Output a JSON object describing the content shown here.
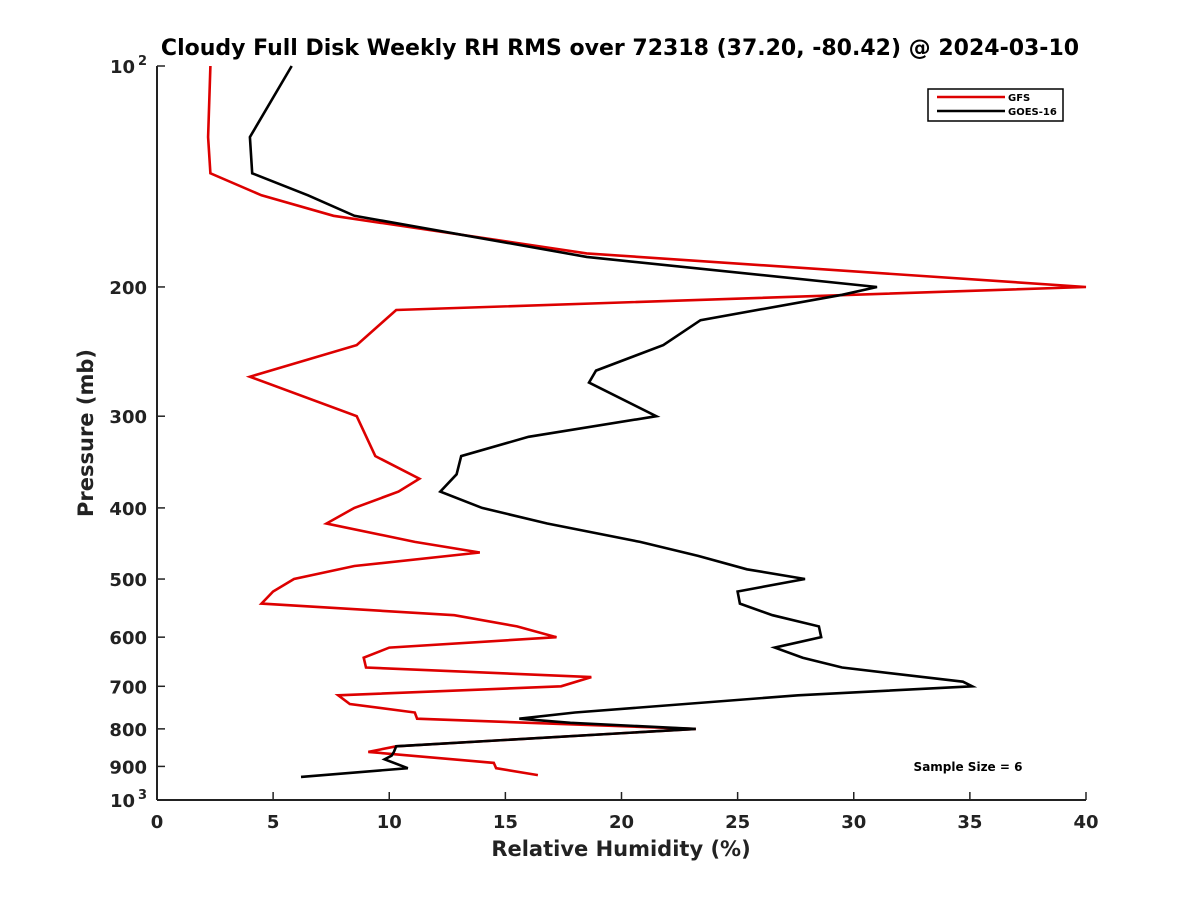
{
  "chart_data": {
    "type": "line",
    "title": "Cloudy Full Disk Weekly RH RMS over 72318 (37.20, -80.42) @ 2024-03-10",
    "xlabel": "Relative Humidity (%)",
    "ylabel": "Pressure (mb)",
    "xlim": [
      0,
      40
    ],
    "ylim": [
      100,
      1000
    ],
    "yscale": "log",
    "y_reversed": true,
    "grid": false,
    "legend_position": "top-right",
    "x_ticks": [
      0,
      5,
      10,
      15,
      20,
      25,
      30,
      35,
      40
    ],
    "x_tick_labels": [
      "0",
      "5",
      "10",
      "15",
      "20",
      "25",
      "30",
      "35",
      "40"
    ],
    "y_ticks": [
      100,
      200,
      300,
      400,
      500,
      600,
      700,
      800,
      900,
      1000
    ],
    "y_tick_labels": [
      {
        "base": "10",
        "exp": "2"
      },
      {
        "base": "200",
        "exp": ""
      },
      {
        "base": "300",
        "exp": ""
      },
      {
        "base": "400",
        "exp": ""
      },
      {
        "base": "500",
        "exp": ""
      },
      {
        "base": "600",
        "exp": ""
      },
      {
        "base": "700",
        "exp": ""
      },
      {
        "base": "800",
        "exp": ""
      },
      {
        "base": "900",
        "exp": ""
      },
      {
        "base": "10",
        "exp": "3"
      }
    ],
    "annotation": "Sample Size = 6",
    "series": [
      {
        "name": "GFS",
        "color": "#dd0000",
        "points": [
          {
            "x": 2.3,
            "p": 100
          },
          {
            "x": 2.2,
            "p": 125
          },
          {
            "x": 2.3,
            "p": 140
          },
          {
            "x": 4.5,
            "p": 150
          },
          {
            "x": 7.6,
            "p": 160
          },
          {
            "x": 18.5,
            "p": 180
          },
          {
            "x": 40.0,
            "p": 200
          },
          {
            "x": 10.3,
            "p": 215
          },
          {
            "x": 8.6,
            "p": 240
          },
          {
            "x": 4.0,
            "p": 265
          },
          {
            "x": 8.6,
            "p": 300
          },
          {
            "x": 9.4,
            "p": 340
          },
          {
            "x": 11.3,
            "p": 365
          },
          {
            "x": 10.4,
            "p": 380
          },
          {
            "x": 8.5,
            "p": 400
          },
          {
            "x": 7.3,
            "p": 420
          },
          {
            "x": 11.1,
            "p": 445
          },
          {
            "x": 13.9,
            "p": 460
          },
          {
            "x": 8.5,
            "p": 480
          },
          {
            "x": 5.9,
            "p": 500
          },
          {
            "x": 5.0,
            "p": 520
          },
          {
            "x": 4.5,
            "p": 540
          },
          {
            "x": 12.8,
            "p": 560
          },
          {
            "x": 15.5,
            "p": 580
          },
          {
            "x": 17.2,
            "p": 600
          },
          {
            "x": 10.0,
            "p": 620
          },
          {
            "x": 8.9,
            "p": 640
          },
          {
            "x": 9.0,
            "p": 660
          },
          {
            "x": 18.7,
            "p": 680
          },
          {
            "x": 17.4,
            "p": 700
          },
          {
            "x": 7.8,
            "p": 720
          },
          {
            "x": 8.3,
            "p": 740
          },
          {
            "x": 11.1,
            "p": 760
          },
          {
            "x": 11.2,
            "p": 775
          },
          {
            "x": 23.2,
            "p": 800
          },
          {
            "x": 10.3,
            "p": 845
          },
          {
            "x": 9.1,
            "p": 860
          },
          {
            "x": 14.5,
            "p": 890
          },
          {
            "x": 14.6,
            "p": 905
          },
          {
            "x": 16.4,
            "p": 925
          }
        ]
      },
      {
        "name": "GOES-16",
        "color": "#000000",
        "points": [
          {
            "x": 5.8,
            "p": 100
          },
          {
            "x": 4.0,
            "p": 125
          },
          {
            "x": 4.1,
            "p": 140
          },
          {
            "x": 6.5,
            "p": 150
          },
          {
            "x": 8.5,
            "p": 160
          },
          {
            "x": 18.5,
            "p": 182
          },
          {
            "x": 31.0,
            "p": 200
          },
          {
            "x": 29.5,
            "p": 205
          },
          {
            "x": 23.4,
            "p": 222
          },
          {
            "x": 21.8,
            "p": 240
          },
          {
            "x": 18.9,
            "p": 260
          },
          {
            "x": 18.6,
            "p": 270
          },
          {
            "x": 21.5,
            "p": 300
          },
          {
            "x": 16.0,
            "p": 320
          },
          {
            "x": 13.1,
            "p": 340
          },
          {
            "x": 12.9,
            "p": 360
          },
          {
            "x": 12.2,
            "p": 380
          },
          {
            "x": 14.0,
            "p": 400
          },
          {
            "x": 16.8,
            "p": 420
          },
          {
            "x": 20.8,
            "p": 445
          },
          {
            "x": 23.3,
            "p": 465
          },
          {
            "x": 25.4,
            "p": 485
          },
          {
            "x": 27.9,
            "p": 500
          },
          {
            "x": 25.0,
            "p": 520
          },
          {
            "x": 25.1,
            "p": 540
          },
          {
            "x": 26.5,
            "p": 560
          },
          {
            "x": 28.5,
            "p": 580
          },
          {
            "x": 28.6,
            "p": 600
          },
          {
            "x": 26.6,
            "p": 620
          },
          {
            "x": 27.8,
            "p": 640
          },
          {
            "x": 29.5,
            "p": 660
          },
          {
            "x": 34.7,
            "p": 690
          },
          {
            "x": 35.1,
            "p": 700
          },
          {
            "x": 27.6,
            "p": 720
          },
          {
            "x": 18.0,
            "p": 760
          },
          {
            "x": 15.6,
            "p": 775
          },
          {
            "x": 17.8,
            "p": 785
          },
          {
            "x": 23.2,
            "p": 800
          },
          {
            "x": 10.3,
            "p": 845
          },
          {
            "x": 10.2,
            "p": 860
          },
          {
            "x": 10.1,
            "p": 870
          },
          {
            "x": 9.8,
            "p": 880
          },
          {
            "x": 10.8,
            "p": 905
          },
          {
            "x": 6.2,
            "p": 930
          }
        ]
      }
    ]
  }
}
